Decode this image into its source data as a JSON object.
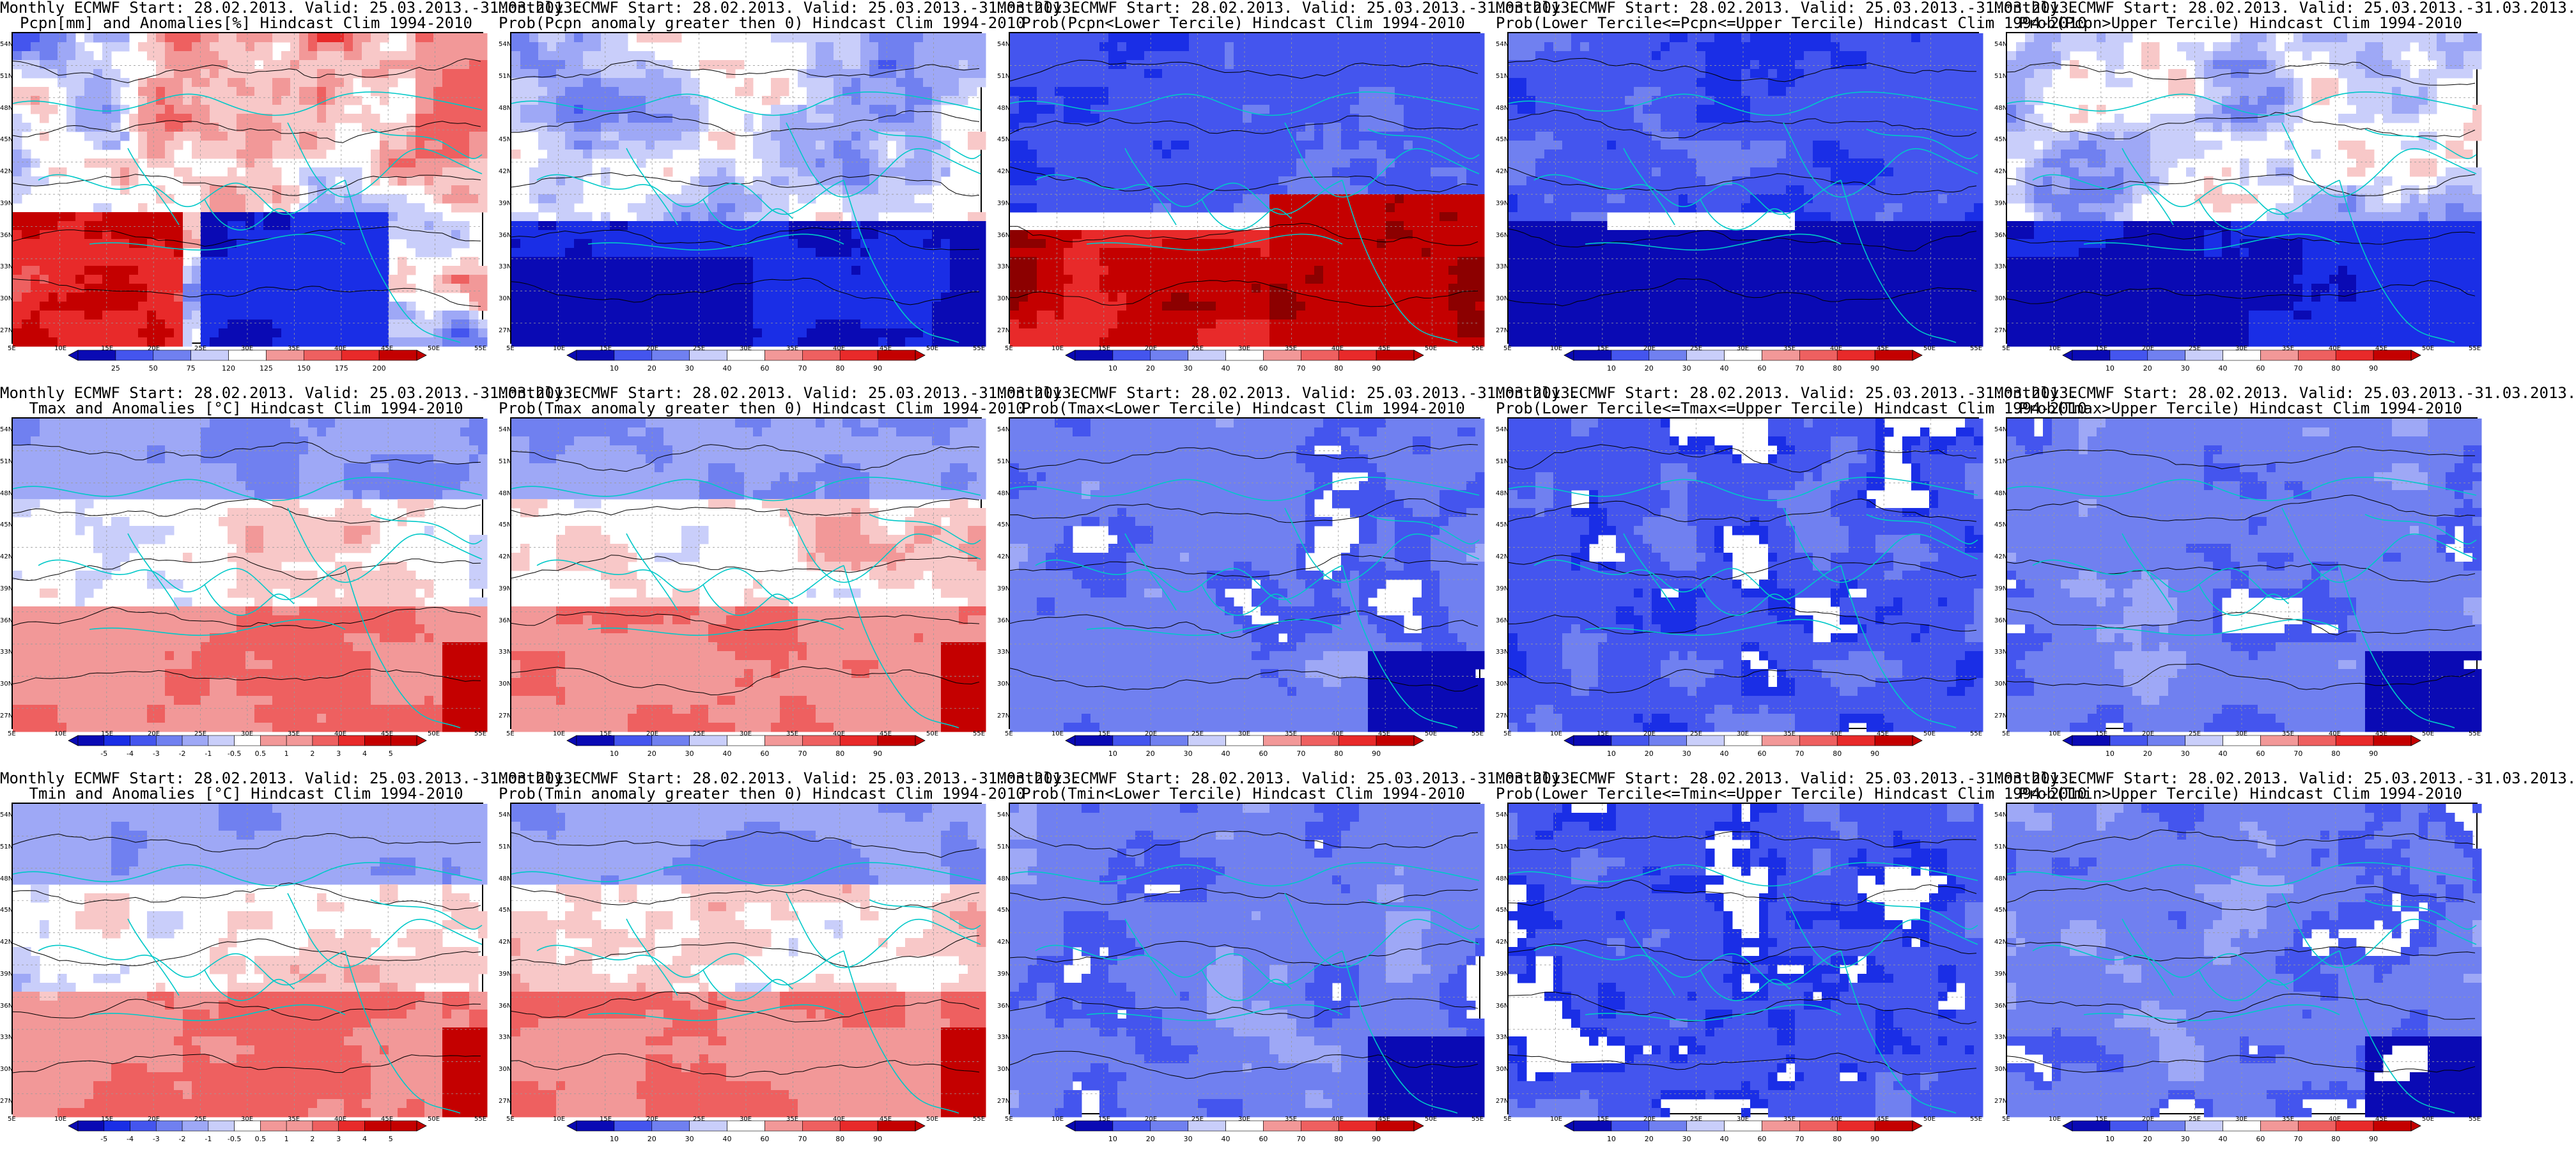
{
  "palette": {
    "blue": [
      "#0a0ab4",
      "#1a2ee6",
      "#4455ee",
      "#7080f0",
      "#9ea8f6",
      "#c9cefa",
      "#ffffff"
    ],
    "red": [
      "#ffffff",
      "#f8c8c8",
      "#f29898",
      "#ee6060",
      "#e82a2a",
      "#c40000",
      "#8c0000"
    ],
    "coast": "#00c8c8",
    "contour": "#000000"
  },
  "axes": {
    "lat_labels": [
      "54N",
      "51N",
      "48N",
      "45N",
      "42N",
      "39N",
      "36N",
      "33N",
      "30N",
      "27N"
    ],
    "lon_labels": [
      "5E",
      "10E",
      "15E",
      "20E",
      "25E",
      "30E",
      "35E",
      "40E",
      "45E",
      "50E",
      "55E"
    ]
  },
  "colorbars": {
    "pcpn_anom": [
      "25",
      "50",
      "75",
      "120",
      "125",
      "150",
      "175",
      "200"
    ],
    "temp_anom": [
      "-5",
      "-4",
      "-3",
      "-2",
      "-1",
      "-0.5",
      "0.5",
      "1",
      "2",
      "3",
      "4",
      "5"
    ],
    "prob": [
      "10",
      "20",
      "30",
      "40",
      "60",
      "70",
      "80",
      "90"
    ]
  },
  "panels": [
    {
      "title1": "Monthly ECMWF Start: 28.02.2013. Valid: 25.03.2013.-31.03.2013.",
      "title2": "Pcpn[mm] and Anomalies[%] Hindcast Clim 1994-2010",
      "bar": "pcpn_anom",
      "mode": "pa"
    },
    {
      "title1": "Monthly ECMWF Start: 28.02.2013. Valid: 25.03.2013.-31.03.2013.",
      "title2": "Prob(Pcpn anomaly greater then 0) Hindcast Clim 1994-2010",
      "bar": "prob",
      "mode": "pb"
    },
    {
      "title1": "Monthly ECMWF Start: 28.02.2013. Valid: 25.03.2013.-31.03.2013.",
      "title2": "Prob(Pcpn<Lower Tercile) Hindcast Clim 1994-2010",
      "bar": "prob",
      "mode": "pc"
    },
    {
      "title1": "Monthly ECMWF Start: 28.02.2013. Valid: 25.03.2013.-31.03.2013.",
      "title2": "Prob(Lower Tercile<=Pcpn<=Upper Tercile) Hindcast Clim 1994-2010",
      "bar": "prob",
      "mode": "pd"
    },
    {
      "title1": "Monthly ECMWF Start: 28.02.2013. Valid: 25.03.2013.-31.03.2013.",
      "title2": "Prob(Pcpn>Upper Tercile) Hindcast Clim 1994-2010",
      "bar": "prob",
      "mode": "pb"
    },
    {
      "title1": "Monthly ECMWF Start: 28.02.2013. Valid: 25.03.2013.-31.03.2013.",
      "title2": "Tmax and Anomalies [°C] Hindcast Clim 1994-2010",
      "bar": "temp_anom",
      "mode": "tw"
    },
    {
      "title1": "Monthly ECMWF Start: 28.02.2013. Valid: 25.03.2013.-31.03.2013.",
      "title2": "Prob(Tmax anomaly greater then 0) Hindcast Clim 1994-2010",
      "bar": "prob",
      "mode": "tw"
    },
    {
      "title1": "Monthly ECMWF Start: 28.02.2013. Valid: 25.03.2013.-31.03.2013.",
      "title2": "Prob(Tmax<Lower Tercile) Hindcast Clim 1994-2010",
      "bar": "prob",
      "mode": "tb"
    },
    {
      "title1": "Monthly ECMWF Start: 28.02.2013. Valid: 25.03.2013.-31.03.2013.",
      "title2": "Prob(Lower Tercile<=Tmax<=Upper Tercile) Hindcast Clim 1994-2010",
      "bar": "prob",
      "mode": "td"
    },
    {
      "title1": "Monthly ECMWF Start: 28.02.2013. Valid: 25.03.2013.-31.03.2013.",
      "title2": "Prob(Tmax>Upper Tercile) Hindcast Clim 1994-2010",
      "bar": "prob",
      "mode": "tb"
    },
    {
      "title1": "Monthly ECMWF Start: 28.02.2013. Valid: 25.03.2013.-31.03.2013.",
      "title2": "Tmin and Anomalies [°C] Hindcast Clim 1994-2010",
      "bar": "temp_anom",
      "mode": "tw"
    },
    {
      "title1": "Monthly ECMWF Start: 28.02.2013. Valid: 25.03.2013.-31.03.2013.",
      "title2": "Prob(Tmin anomaly greater then 0) Hindcast Clim 1994-2010",
      "bar": "prob",
      "mode": "tw"
    },
    {
      "title1": "Monthly ECMWF Start: 28.02.2013. Valid: 25.03.2013.-31.03.2013.",
      "title2": "Prob(Tmin<Lower Tercile) Hindcast Clim 1994-2010",
      "bar": "prob",
      "mode": "tb"
    },
    {
      "title1": "Monthly ECMWF Start: 28.02.2013. Valid: 25.03.2013.-31.03.2013.",
      "title2": "Prob(Lower Tercile<=Tmin<=Upper Tercile) Hindcast Clim 1994-2010",
      "bar": "prob",
      "mode": "td"
    },
    {
      "title1": "Monthly ECMWF Start: 28.02.2013. Valid: 25.03.2013.-31.03.2013.",
      "title2": "Prob(Tmin>Upper Tercile) Hindcast Clim 1994-2010",
      "bar": "prob",
      "mode": "tb"
    }
  ]
}
